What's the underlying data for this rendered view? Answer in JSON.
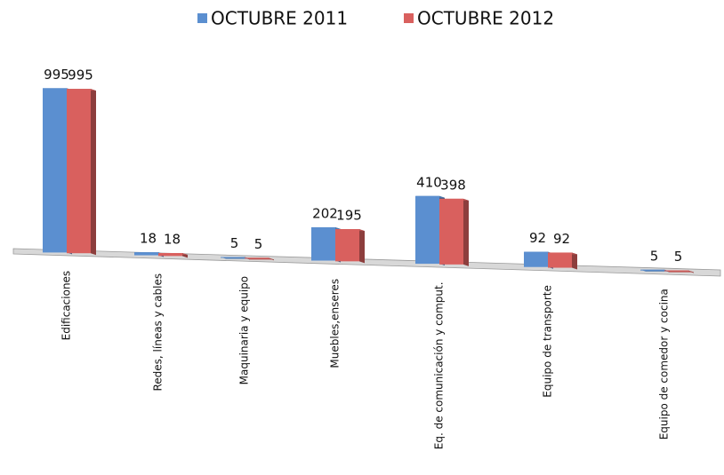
{
  "chart_data": {
    "type": "bar3d",
    "categories": [
      "Edificaciones",
      "Redes, líneas y cables",
      "Maquinaria y equipo",
      "Muebles,enseres",
      "Eq. de comunicación y comput.",
      "Equipo de transporte",
      "Equipo de comedor y cocina"
    ],
    "series": [
      {
        "name": "OCTUBRE 2011",
        "color": "#5b8fd0",
        "values": [
          995,
          18,
          5,
          202,
          410,
          92,
          5
        ]
      },
      {
        "name": "OCTUBRE 2012",
        "color": "#d9605e",
        "values": [
          995,
          18,
          5,
          195,
          398,
          92,
          5
        ]
      }
    ]
  }
}
